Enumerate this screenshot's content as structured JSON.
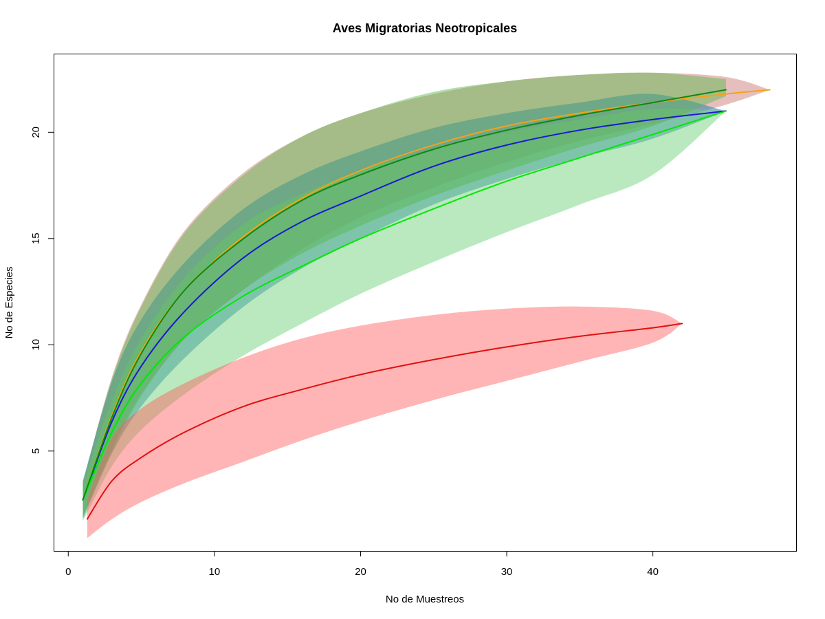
{
  "chart_data": {
    "type": "line",
    "title": "Aves Migratorias Neotropicales",
    "xlabel": "No de Muestreos",
    "ylabel": "No de Especies",
    "xlim": [
      -1,
      49.8
    ],
    "ylim": [
      0.3,
      23.7
    ],
    "xticks": [
      0,
      10,
      20,
      30,
      40
    ],
    "yticks": [
      5,
      10,
      15,
      20
    ],
    "grid": false,
    "legend": "none",
    "series": [
      {
        "color": "#f4a21b",
        "band_color": "#c8706a",
        "band_opacity": 0.45,
        "x": [
          1,
          3,
          5,
          8,
          12,
          16,
          20,
          25,
          30,
          35,
          40,
          45,
          48
        ],
        "y": [
          2.7,
          6.7,
          9.7,
          12.6,
          15.1,
          16.9,
          18.2,
          19.4,
          20.3,
          20.9,
          21.4,
          21.8,
          22
        ],
        "lower": [
          1.9,
          5.1,
          7.7,
          10.3,
          12.6,
          14.5,
          16.0,
          17.4,
          18.6,
          19.6,
          20.4,
          21.3,
          22
        ],
        "upper": [
          3.5,
          8.5,
          11.9,
          15.4,
          18.1,
          19.8,
          20.9,
          21.8,
          22.4,
          22.7,
          22.8,
          22.6,
          22
        ]
      },
      {
        "color": "#1a1ad0",
        "band_color": "#2f7fb5",
        "band_opacity": 0.55,
        "x": [
          1,
          3,
          5,
          8,
          12,
          16,
          20,
          25,
          30,
          35,
          40,
          45
        ],
        "y": [
          2.7,
          6.4,
          9.0,
          11.6,
          14.1,
          15.8,
          17.0,
          18.4,
          19.4,
          20.1,
          20.6,
          21
        ],
        "lower": [
          1.8,
          4.9,
          7.1,
          9.4,
          11.8,
          13.6,
          15.0,
          16.6,
          17.8,
          18.8,
          19.7,
          21
        ],
        "upper": [
          3.6,
          8.3,
          11.2,
          13.9,
          16.4,
          18.0,
          19.1,
          20.2,
          20.9,
          21.4,
          21.8,
          21
        ]
      },
      {
        "color": "#00e800",
        "band_color": "#6fd07a",
        "band_opacity": 0.48,
        "x": [
          1,
          3,
          5,
          8,
          12,
          16,
          20,
          25,
          30,
          35,
          40,
          45
        ],
        "y": [
          2.7,
          5.9,
          8.2,
          10.4,
          12.3,
          13.7,
          15.0,
          16.4,
          17.7,
          18.8,
          19.9,
          21
        ],
        "lower": [
          1.7,
          4.3,
          6.0,
          7.7,
          9.5,
          11.0,
          12.4,
          13.9,
          15.3,
          16.6,
          18.0,
          21
        ],
        "upper": [
          3.4,
          7.4,
          10.3,
          13.2,
          15.7,
          17.1,
          18.2,
          19.2,
          20.0,
          20.6,
          21.1,
          21
        ]
      },
      {
        "color": "#0d8a0d",
        "band_color": "#56b84a",
        "band_opacity": 0.45,
        "x": [
          1,
          3,
          5,
          8,
          12,
          16,
          20,
          25,
          30,
          35,
          40,
          45
        ],
        "y": [
          2.7,
          6.6,
          9.6,
          12.6,
          15.0,
          16.8,
          18.0,
          19.2,
          20.1,
          20.8,
          21.4,
          22
        ],
        "lower": [
          1.9,
          5.0,
          7.6,
          10.3,
          12.6,
          14.3,
          15.6,
          17.0,
          18.2,
          19.3,
          20.3,
          21.7
        ],
        "upper": [
          3.5,
          8.4,
          11.8,
          15.3,
          18.0,
          19.8,
          20.9,
          21.9,
          22.4,
          22.7,
          22.8,
          22.5
        ]
      },
      {
        "color": "#e01010",
        "band_color": "#ff5a5a",
        "band_opacity": 0.45,
        "x": [
          1.3,
          3,
          5,
          8,
          12,
          16,
          20,
          25,
          30,
          35,
          40,
          42
        ],
        "y": [
          1.8,
          3.6,
          4.7,
          5.9,
          7.1,
          7.9,
          8.6,
          9.3,
          9.9,
          10.4,
          10.8,
          11
        ],
        "lower": [
          0.9,
          1.8,
          2.6,
          3.5,
          4.5,
          5.5,
          6.4,
          7.4,
          8.3,
          9.2,
          10.1,
          11
        ],
        "upper": [
          2.7,
          5.6,
          7.0,
          8.2,
          9.4,
          10.3,
          10.9,
          11.4,
          11.7,
          11.8,
          11.6,
          11
        ]
      }
    ]
  }
}
